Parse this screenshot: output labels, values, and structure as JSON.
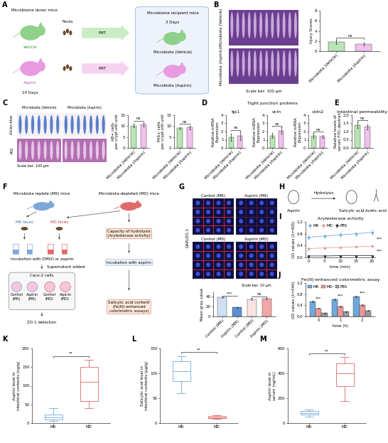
{
  "panel_labels": [
    "A",
    "B",
    "C",
    "D",
    "E",
    "F",
    "G",
    "H",
    "I",
    "J",
    "K",
    "L",
    "M"
  ],
  "panel_A": {
    "donor_title": "Microbiome donor mice",
    "donor_groups": [
      "Vehicle",
      "Aspirin"
    ],
    "donor_duration": "14 Days",
    "feces": "Feces",
    "transfer": [
      "FMT",
      "FMT"
    ],
    "recipient_title": "Microbiome recipient mice",
    "recipient_duration": "3 Days",
    "recipient_groups": [
      "Microbiota (Vehicle)",
      "Microbiota (Aspirin)"
    ]
  },
  "panel_B_images": {
    "rows": [
      "Microbiota (Vehicle)",
      "Microbiota (Aspirin)"
    ],
    "scale_bar": "Scale bar: 100 μm"
  },
  "panel_C_images": {
    "columns": [
      "Microbiota (Vehicle)",
      "Microbiota (Aspirin)"
    ],
    "rows": [
      "Alcian blue",
      "PAS"
    ],
    "scale_bar": "Scale bar: 100 μm"
  },
  "panel_D_header": "Tight junction proteins",
  "panel_F": {
    "left_source": "Microbiota-replete (MR) mice",
    "right_source": "Microbiota-depleted (MD) mice",
    "feces": [
      "MR feces",
      "MD feces"
    ],
    "incubation": "Incubation with DMSO or aspirin",
    "transfer": "Supernatant added",
    "cells": "Caco-2 cells",
    "wells": [
      [
        "Control",
        "(MR)"
      ],
      [
        "Aspirin",
        "(MR)"
      ],
      [
        "Control",
        "(MD)"
      ],
      [
        "Aspirin",
        "(MD)"
      ]
    ],
    "readout": "ZO-1 detection",
    "hydrolysis": [
      "Capacity of hydrolysis",
      "(Arylesterase activity)"
    ],
    "aspirin_incubation": "Incubation with aspirin",
    "product_readout": [
      "Salicylic acid content",
      "(Fe(III)-enhanced",
      "colorimetric assays)"
    ]
  },
  "panel_G_images": {
    "labels": [
      "Control (MR)",
      "Aspirin (MR)",
      "Control (MD)",
      "Aspirin (MD)"
    ],
    "stain": "DAPI/ZO-1",
    "scale_bar": "Scale bar: 10 μm"
  },
  "panel_H": {
    "reactant": "Aspirin",
    "reaction": "Hydrolysis",
    "products": [
      "Salicylic acid",
      "Acetic acid"
    ]
  },
  "chart_data": [
    {
      "type": "bar",
      "ylabel": "Injury Scores",
      "categories": [
        "Microbiota (Vehicle)",
        "Microbiota (Aspirin)"
      ],
      "values": [
        1.8,
        1.4
      ],
      "errors": [
        0.4,
        0.3
      ],
      "colors": [
        "#b9e4b4",
        "#f2c0ec"
      ],
      "ylim": [
        0,
        8
      ],
      "yticks": [
        0,
        2,
        4,
        6,
        8
      ],
      "annotations": [
        "ns"
      ]
    },
    {
      "type": "bar",
      "ylabel": [
        "AB+ cells",
        "per crypt-villi unit"
      ],
      "categories": [
        "Microbiota (Vehicle)",
        "Microbiota (Aspirin)"
      ],
      "values": [
        10.2,
        10.8
      ],
      "errors": [
        0.8,
        1.0
      ],
      "colors": [
        "#b9e4b4",
        "#f2c0ec"
      ],
      "ylim": [
        0,
        15
      ],
      "yticks": [
        0,
        5,
        10,
        15
      ],
      "annotations": [
        "ns"
      ]
    },
    {
      "type": "bar",
      "ylabel": [
        "PAS+ cells",
        "per crypt-villi unit"
      ],
      "categories": [
        "Microbiota (Vehicle)",
        "Microbiota (Aspirin)"
      ],
      "values": [
        9.0,
        9.4
      ],
      "errors": [
        0.6,
        0.8
      ],
      "colors": [
        "#b9e4b4",
        "#f2c0ec"
      ],
      "ylim": [
        0,
        15
      ],
      "yticks": [
        0,
        5,
        10,
        15
      ],
      "annotations": [
        "ns"
      ]
    },
    {
      "type": "bar",
      "title": "tjp1",
      "ylabel": [
        "Relative mRNA",
        "Expression"
      ],
      "categories": [
        "Microbiota (Vehicle)",
        "Microbiota (Aspirin)"
      ],
      "values": [
        1.3,
        1.5
      ],
      "errors": [
        0.4,
        0.5
      ],
      "colors": [
        "#b9e4b4",
        "#f2c0ec"
      ],
      "ylim": [
        0,
        4
      ],
      "yticks": [
        0,
        1,
        2,
        3,
        4
      ],
      "annotations": [
        "ns"
      ]
    },
    {
      "type": "bar",
      "title": "ocln",
      "ylabel": [
        "Relative mRNA",
        "Expression"
      ],
      "categories": [
        "Microbiota (Vehicle)",
        "Microbiota (Aspirin)"
      ],
      "values": [
        1.5,
        2.1
      ],
      "errors": [
        0.3,
        0.4
      ],
      "colors": [
        "#b9e4b4",
        "#f2c0ec"
      ],
      "ylim": [
        0,
        4
      ],
      "yticks": [
        0,
        1,
        2,
        3,
        4
      ],
      "annotations": [
        "ns"
      ]
    },
    {
      "type": "bar",
      "title": "cldn2",
      "ylabel": [
        "Relative mRNA",
        "Expression"
      ],
      "categories": [
        "Microbiota (Vehicle)",
        "Microbiota (Aspirin)"
      ],
      "values": [
        1.5,
        1.4
      ],
      "errors": [
        0.3,
        0.2
      ],
      "colors": [
        "#b9e4b4",
        "#f2c0ec"
      ],
      "ylim": [
        0,
        4
      ],
      "yticks": [
        0,
        1,
        2,
        3,
        4
      ],
      "annotations": [
        "ns"
      ]
    },
    {
      "type": "bar",
      "title": "Intestinal permeability",
      "ylabel": [
        "Relative levels of",
        "serum FITC-dextran"
      ],
      "categories": [
        "Microbiota (Vehicle)",
        "Microbiota (Aspirin)"
      ],
      "values": [
        1.4,
        1.3
      ],
      "errors": [
        0.2,
        0.15
      ],
      "colors": [
        "#b9e4b4",
        "#f2c0ec"
      ],
      "ylim": [
        0,
        2
      ],
      "yticks": [
        {
          "value": 0,
          "label": "0.0"
        },
        0.5,
        {
          "value": 1,
          "label": "1.0"
        },
        1.5,
        {
          "value": 2,
          "label": "2.0"
        }
      ],
      "annotations": [
        "ns"
      ]
    },
    {
      "type": "bar",
      "ylabel": "Mean gray value",
      "categories": [
        "Control (MR)",
        "Aspirin (MR)",
        "Control (MD)",
        "Aspirin (MD)"
      ],
      "values": [
        38,
        18,
        35,
        36
      ],
      "errors": [
        1.5,
        1.0,
        2.0,
        2.0
      ],
      "colors": [
        "#cfe0f3",
        "#5b8fd1",
        "#fbe3e3",
        "#f4a6a6"
      ],
      "ylim": [
        0,
        50
      ],
      "yticks": [
        0,
        20,
        40
      ],
      "annotations": [
        "***",
        "ns"
      ]
    },
    {
      "type": "line",
      "title": "Arylesterase activity",
      "xlabel": "time (min)",
      "ylabel": "OD values (λ=405)",
      "x": [
        0,
        5,
        10,
        15,
        20
      ],
      "series": [
        {
          "name": "MR",
          "color": "#6fa8dc",
          "marker": "o",
          "values": [
            0.68,
            0.72,
            0.76,
            0.8,
            0.85
          ],
          "errors": [
            0.06,
            0.06,
            0.07,
            0.07,
            0.08
          ]
        },
        {
          "name": "MD",
          "color": "#ea9999",
          "marker": "o",
          "values": [
            0.3,
            0.32,
            0.34,
            0.36,
            0.38
          ],
          "errors": [
            0.03,
            0.03,
            0.03,
            0.03,
            0.03
          ]
        },
        {
          "name": "PBS",
          "color": "#333333",
          "marker": "o",
          "values": [
            0.05,
            0.05,
            0.06,
            0.06,
            0.06
          ],
          "errors": [
            0.01,
            0.01,
            0.01,
            0.01,
            0.01
          ]
        }
      ],
      "xlim": [
        -1,
        21
      ],
      "xticks": [
        0,
        5,
        10,
        15,
        20
      ],
      "ylim": [
        0,
        1.2
      ],
      "yticks": [
        {
          "value": 0,
          "label": "0.0"
        },
        0.4,
        0.8,
        1.2
      ],
      "legend": "upper left",
      "annotations": [
        "***",
        "***"
      ]
    },
    {
      "type": "bar",
      "title": "Fe(III)-enhanced colorimetric assay",
      "xlabel": "time (h)",
      "ylabel": "OD values (λ=540)",
      "categories": [
        "0",
        "1",
        "2"
      ],
      "series": [
        {
          "name": "MR",
          "color": "#6fa8dc",
          "values": [
            0.53,
            0.62,
            0.71
          ],
          "errors": [
            0.02,
            0.03,
            0.03
          ]
        },
        {
          "name": "MD",
          "color": "#ea9999",
          "values": [
            0.29,
            0.36,
            0.41
          ],
          "errors": [
            0.02,
            0.02,
            0.02
          ]
        },
        {
          "name": "PBS",
          "color": "#999999",
          "values": [
            0.12,
            0.17,
            0.21
          ],
          "errors": [
            0.01,
            0.01,
            0.01
          ]
        }
      ],
      "ylim": [
        0,
        1.2
      ],
      "yticks": [
        {
          "value": 0,
          "label": "0.0"
        },
        0.4,
        0.8,
        1.2
      ],
      "legend": "upper left",
      "annotations": [
        "***",
        "***",
        "***"
      ]
    },
    {
      "type": "box",
      "ylabel": [
        "Aspirin level in",
        "intestinal contents (ng/g)"
      ],
      "categories": [
        "MR",
        "MD"
      ],
      "boxes": [
        {
          "min": 5,
          "q1": 10,
          "median": 15,
          "q3": 22,
          "max": 40
        },
        {
          "min": 40,
          "q1": 60,
          "median": 110,
          "q3": 150,
          "max": 170
        }
      ],
      "colors": [
        "#6fa8dc",
        "#e06666"
      ],
      "ylim": [
        0,
        200
      ],
      "yticks": [
        0,
        50,
        100,
        150,
        200
      ],
      "annotations": [
        "**"
      ]
    },
    {
      "type": "box",
      "ylabel": [
        "Salicylic acid level in",
        "intestinal contents (μg/g)"
      ],
      "categories": [
        "MR",
        "MD"
      ],
      "boxes": [
        {
          "min": 60,
          "q1": 85,
          "median": 105,
          "q3": 125,
          "max": 135
        },
        {
          "min": 8,
          "q1": 10,
          "median": 12,
          "q3": 14,
          "max": 16
        }
      ],
      "colors": [
        "#6fa8dc",
        "#e06666"
      ],
      "ylim": [
        0,
        150
      ],
      "yticks": [
        0,
        50,
        100,
        150
      ],
      "annotations": [
        "**"
      ]
    },
    {
      "type": "box",
      "ylabel": [
        "Aspirin level in",
        "serum (ng/mL)"
      ],
      "categories": [
        "MR",
        "MD"
      ],
      "boxes": [
        {
          "min": 50,
          "q1": 70,
          "median": 80,
          "q3": 95,
          "max": 110
        },
        {
          "min": 180,
          "q1": 300,
          "median": 400,
          "q3": 480,
          "max": 530
        }
      ],
      "colors": [
        "#6fa8dc",
        "#e06666"
      ],
      "ylim": [
        0,
        600
      ],
      "yticks": [
        0,
        200,
        400,
        600
      ],
      "annotations": [
        "**"
      ]
    }
  ]
}
